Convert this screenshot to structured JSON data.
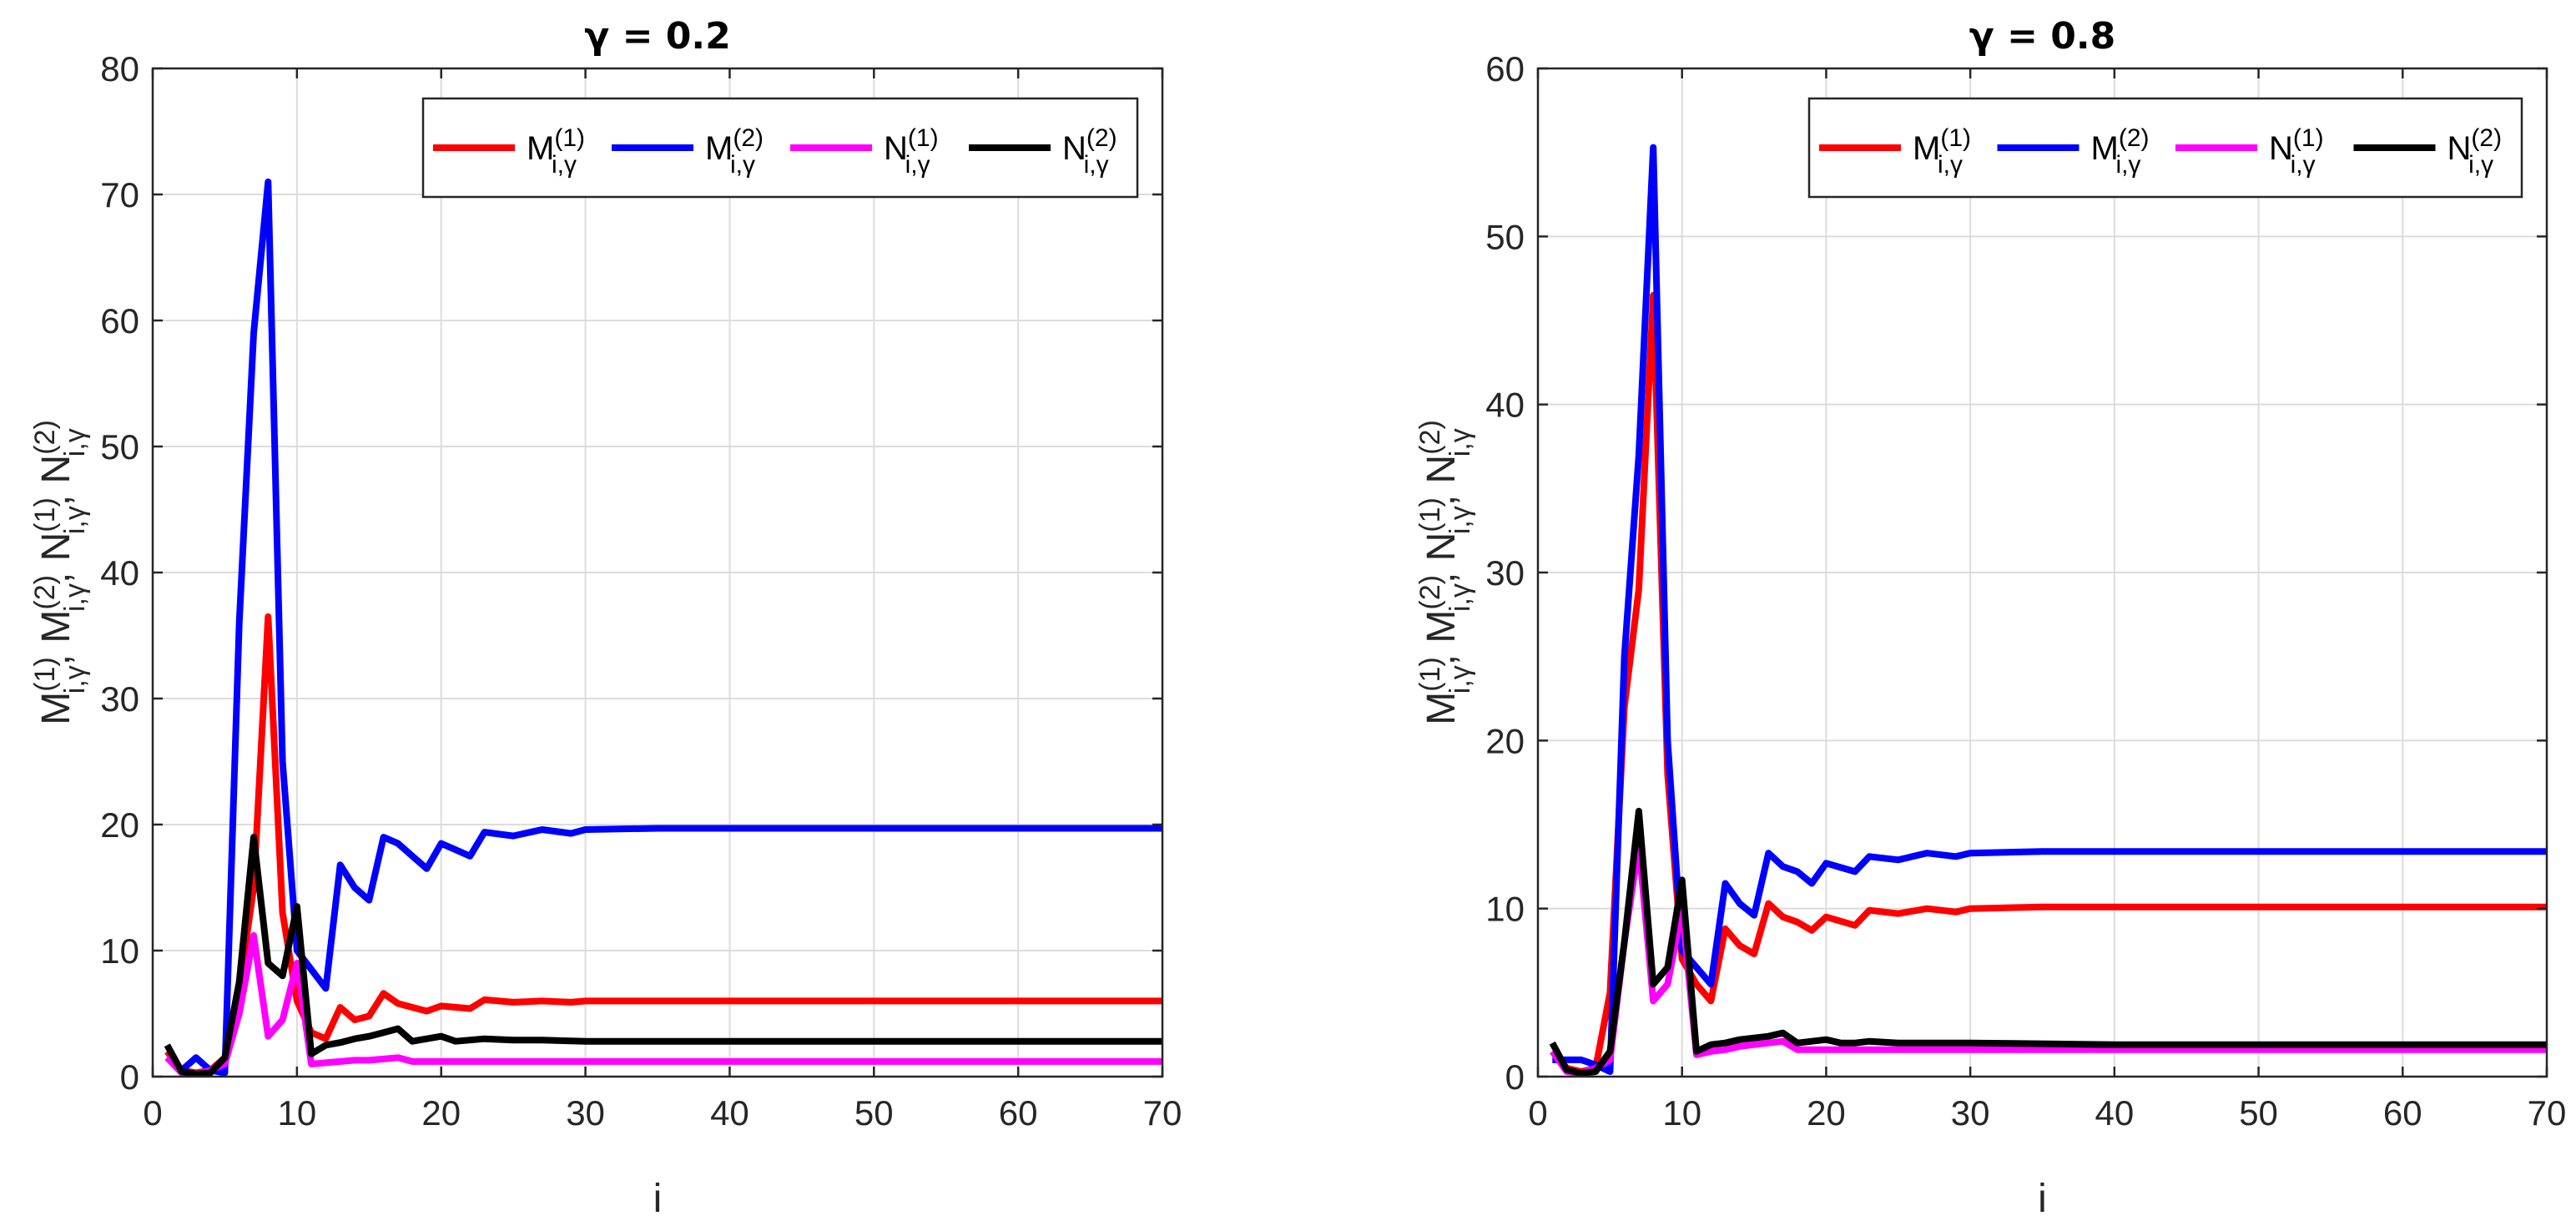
{
  "chart_data": [
    {
      "type": "line",
      "title": "γ = 0.2",
      "xlabel": "i",
      "ylabel_parts": [
        "M",
        "N"
      ],
      "xlim": [
        0,
        70
      ],
      "ylim": [
        0,
        80
      ],
      "xticks": [
        0,
        10,
        20,
        30,
        40,
        50,
        60,
        70
      ],
      "yticks": [
        0,
        10,
        20,
        30,
        40,
        50,
        60,
        70,
        80
      ],
      "grid": true,
      "legend": "top-right",
      "series": [
        {
          "name": "M(1)",
          "color": "#ff0000",
          "points": [
            [
              1,
              2.0
            ],
            [
              2,
              0.5
            ],
            [
              3,
              0.3
            ],
            [
              4,
              0.5
            ],
            [
              5,
              1.5
            ],
            [
              6,
              7.0
            ],
            [
              7,
              15.0
            ],
            [
              8,
              36.5
            ],
            [
              9,
              13.0
            ],
            [
              10,
              6.0
            ],
            [
              11,
              3.5
            ],
            [
              12,
              3.0
            ],
            [
              13,
              5.5
            ],
            [
              14,
              4.5
            ],
            [
              15,
              4.8
            ],
            [
              16,
              6.6
            ],
            [
              17,
              5.8
            ],
            [
              18,
              5.5
            ],
            [
              19,
              5.2
            ],
            [
              20,
              5.6
            ],
            [
              22,
              5.4
            ],
            [
              23,
              6.1
            ],
            [
              25,
              5.9
            ],
            [
              27,
              6.0
            ],
            [
              29,
              5.9
            ],
            [
              30,
              6.0
            ],
            [
              35,
              6.0
            ],
            [
              40,
              6.0
            ],
            [
              50,
              6.0
            ],
            [
              60,
              6.0
            ],
            [
              70,
              6.0
            ]
          ]
        },
        {
          "name": "M(2)",
          "color": "#0000ff",
          "points": [
            [
              1,
              1.5
            ],
            [
              2,
              0.5
            ],
            [
              3,
              1.5
            ],
            [
              4,
              0.5
            ],
            [
              5,
              0.3
            ],
            [
              6,
              36.0
            ],
            [
              7,
              59.0
            ],
            [
              8,
              71.0
            ],
            [
              9,
              25.0
            ],
            [
              10,
              10.0
            ],
            [
              11,
              8.5
            ],
            [
              12,
              7.0
            ],
            [
              13,
              16.8
            ],
            [
              14,
              15.0
            ],
            [
              15,
              14.0
            ],
            [
              16,
              19.0
            ],
            [
              17,
              18.5
            ],
            [
              18,
              17.5
            ],
            [
              19,
              16.5
            ],
            [
              20,
              18.5
            ],
            [
              21,
              18.0
            ],
            [
              22,
              17.5
            ],
            [
              23,
              19.4
            ],
            [
              25,
              19.1
            ],
            [
              27,
              19.6
            ],
            [
              29,
              19.3
            ],
            [
              30,
              19.6
            ],
            [
              35,
              19.7
            ],
            [
              40,
              19.7
            ],
            [
              50,
              19.7
            ],
            [
              60,
              19.7
            ],
            [
              70,
              19.7
            ]
          ]
        },
        {
          "name": "N(1)",
          "color": "#ff00ff",
          "points": [
            [
              1,
              1.5
            ],
            [
              2,
              0.3
            ],
            [
              3,
              0.2
            ],
            [
              4,
              0.5
            ],
            [
              5,
              1.0
            ],
            [
              6,
              5.0
            ],
            [
              7,
              11.2
            ],
            [
              8,
              3.2
            ],
            [
              9,
              4.5
            ],
            [
              10,
              9.0
            ],
            [
              11,
              1.0
            ],
            [
              12,
              1.1
            ],
            [
              13,
              1.2
            ],
            [
              14,
              1.3
            ],
            [
              15,
              1.3
            ],
            [
              16,
              1.4
            ],
            [
              17,
              1.5
            ],
            [
              18,
              1.2
            ],
            [
              19,
              1.2
            ],
            [
              20,
              1.2
            ],
            [
              22,
              1.2
            ],
            [
              25,
              1.2
            ],
            [
              30,
              1.2
            ],
            [
              40,
              1.2
            ],
            [
              50,
              1.2
            ],
            [
              60,
              1.2
            ],
            [
              70,
              1.2
            ]
          ]
        },
        {
          "name": "N(2)",
          "color": "#000000",
          "points": [
            [
              1,
              2.5
            ],
            [
              2,
              0.4
            ],
            [
              3,
              0.2
            ],
            [
              4,
              0.3
            ],
            [
              5,
              1.5
            ],
            [
              6,
              7.5
            ],
            [
              7,
              19.0
            ],
            [
              8,
              9.0
            ],
            [
              9,
              8.0
            ],
            [
              10,
              13.5
            ],
            [
              11,
              1.8
            ],
            [
              12,
              2.5
            ],
            [
              13,
              2.7
            ],
            [
              14,
              3.0
            ],
            [
              15,
              3.2
            ],
            [
              16,
              3.5
            ],
            [
              17,
              3.8
            ],
            [
              18,
              2.8
            ],
            [
              19,
              3.0
            ],
            [
              20,
              3.2
            ],
            [
              21,
              2.8
            ],
            [
              22,
              2.9
            ],
            [
              23,
              3.0
            ],
            [
              25,
              2.9
            ],
            [
              27,
              2.9
            ],
            [
              30,
              2.8
            ],
            [
              40,
              2.8
            ],
            [
              50,
              2.8
            ],
            [
              60,
              2.8
            ],
            [
              70,
              2.8
            ]
          ]
        }
      ]
    },
    {
      "type": "line",
      "title": "γ = 0.8",
      "xlabel": "i",
      "ylabel_parts": [
        "M",
        "N"
      ],
      "xlim": [
        0,
        70
      ],
      "ylim": [
        0,
        60
      ],
      "xticks": [
        0,
        10,
        20,
        30,
        40,
        50,
        60,
        70
      ],
      "yticks": [
        0,
        10,
        20,
        30,
        40,
        50,
        60
      ],
      "grid": true,
      "legend": "top-right",
      "series": [
        {
          "name": "M(1)",
          "color": "#ff0000",
          "points": [
            [
              1,
              1.5
            ],
            [
              2,
              0.5
            ],
            [
              3,
              0.3
            ],
            [
              4,
              0.5
            ],
            [
              5,
              5.0
            ],
            [
              6,
              22.0
            ],
            [
              7,
              29.0
            ],
            [
              8,
              46.5
            ],
            [
              9,
              18.0
            ],
            [
              10,
              7.0
            ],
            [
              11,
              5.5
            ],
            [
              12,
              4.5
            ],
            [
              13,
              8.8
            ],
            [
              14,
              7.8
            ],
            [
              15,
              7.3
            ],
            [
              16,
              10.3
            ],
            [
              17,
              9.5
            ],
            [
              18,
              9.2
            ],
            [
              19,
              8.7
            ],
            [
              20,
              9.5
            ],
            [
              22,
              9.0
            ],
            [
              23,
              9.9
            ],
            [
              25,
              9.7
            ],
            [
              27,
              10.0
            ],
            [
              29,
              9.8
            ],
            [
              30,
              10.0
            ],
            [
              35,
              10.1
            ],
            [
              40,
              10.1
            ],
            [
              50,
              10.1
            ],
            [
              60,
              10.1
            ],
            [
              70,
              10.1
            ]
          ]
        },
        {
          "name": "M(2)",
          "color": "#0000ff",
          "points": [
            [
              1,
              1.0
            ],
            [
              2,
              1.0
            ],
            [
              3,
              1.0
            ],
            [
              4,
              0.7
            ],
            [
              5,
              0.3
            ],
            [
              6,
              25.0
            ],
            [
              7,
              37.0
            ],
            [
              8,
              55.3
            ],
            [
              9,
              20.0
            ],
            [
              10,
              7.5
            ],
            [
              11,
              6.5
            ],
            [
              12,
              5.5
            ],
            [
              13,
              11.5
            ],
            [
              14,
              10.3
            ],
            [
              15,
              9.6
            ],
            [
              16,
              13.3
            ],
            [
              17,
              12.5
            ],
            [
              18,
              12.2
            ],
            [
              19,
              11.5
            ],
            [
              20,
              12.7
            ],
            [
              22,
              12.2
            ],
            [
              23,
              13.1
            ],
            [
              25,
              12.9
            ],
            [
              27,
              13.3
            ],
            [
              29,
              13.1
            ],
            [
              30,
              13.3
            ],
            [
              35,
              13.4
            ],
            [
              40,
              13.4
            ],
            [
              50,
              13.4
            ],
            [
              60,
              13.4
            ],
            [
              70,
              13.4
            ]
          ]
        },
        {
          "name": "N(1)",
          "color": "#ff00ff",
          "points": [
            [
              1,
              1.5
            ],
            [
              2,
              0.3
            ],
            [
              3,
              0.2
            ],
            [
              4,
              0.5
            ],
            [
              5,
              1.0
            ],
            [
              6,
              8.0
            ],
            [
              7,
              13.8
            ],
            [
              8,
              4.5
            ],
            [
              9,
              5.5
            ],
            [
              10,
              10.0
            ],
            [
              11,
              1.3
            ],
            [
              12,
              1.5
            ],
            [
              13,
              1.6
            ],
            [
              14,
              1.8
            ],
            [
              15,
              1.9
            ],
            [
              16,
              2.0
            ],
            [
              17,
              2.1
            ],
            [
              18,
              1.6
            ],
            [
              19,
              1.6
            ],
            [
              20,
              1.6
            ],
            [
              22,
              1.6
            ],
            [
              25,
              1.6
            ],
            [
              30,
              1.6
            ],
            [
              40,
              1.6
            ],
            [
              50,
              1.6
            ],
            [
              60,
              1.6
            ],
            [
              70,
              1.6
            ]
          ]
        },
        {
          "name": "N(2)",
          "color": "#000000",
          "points": [
            [
              1,
              2.0
            ],
            [
              2,
              0.4
            ],
            [
              3,
              0.2
            ],
            [
              4,
              0.3
            ],
            [
              5,
              1.5
            ],
            [
              6,
              8.0
            ],
            [
              7,
              15.8
            ],
            [
              8,
              5.5
            ],
            [
              9,
              6.5
            ],
            [
              10,
              11.7
            ],
            [
              11,
              1.5
            ],
            [
              12,
              1.9
            ],
            [
              13,
              2.0
            ],
            [
              14,
              2.2
            ],
            [
              15,
              2.3
            ],
            [
              16,
              2.4
            ],
            [
              17,
              2.6
            ],
            [
              18,
              2.0
            ],
            [
              19,
              2.1
            ],
            [
              20,
              2.2
            ],
            [
              21,
              2.0
            ],
            [
              22,
              2.0
            ],
            [
              23,
              2.1
            ],
            [
              25,
              2.0
            ],
            [
              27,
              2.0
            ],
            [
              30,
              2.0
            ],
            [
              40,
              1.9
            ],
            [
              50,
              1.9
            ],
            [
              60,
              1.9
            ],
            [
              70,
              1.9
            ]
          ]
        }
      ]
    }
  ],
  "ylabel_sup": [
    "(1)",
    "(2)"
  ],
  "ylabel_sub": "i,γ",
  "legend_sub": "i,γ"
}
